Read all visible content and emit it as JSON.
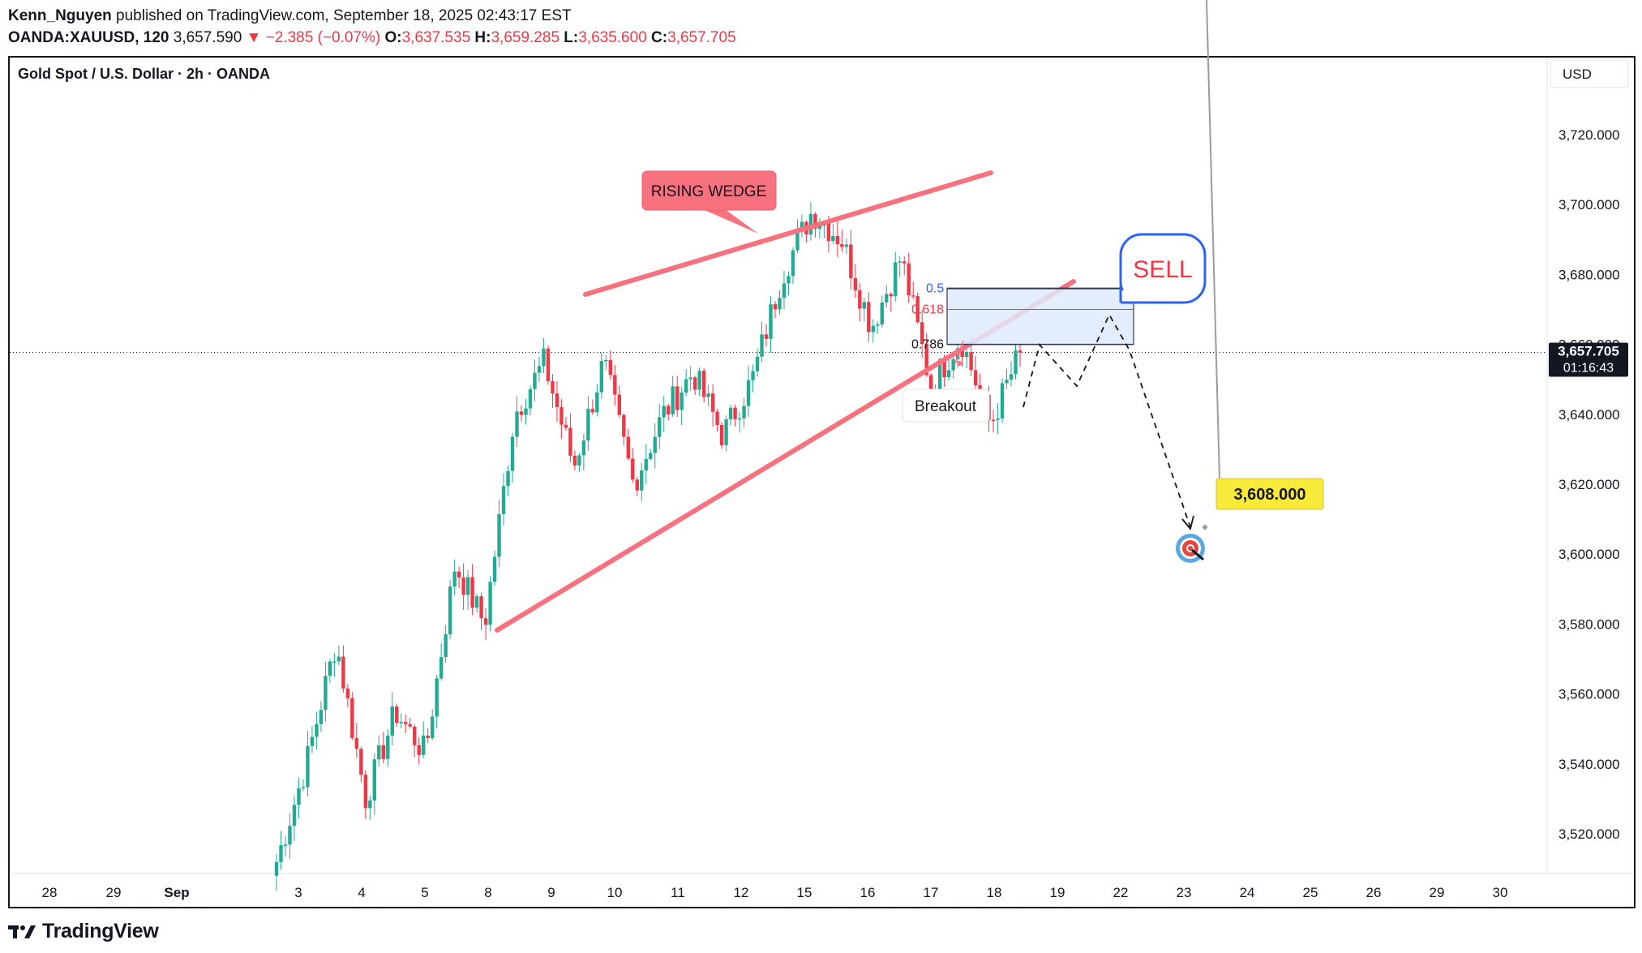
{
  "header": {
    "author": "Kenn_Nguyen",
    "published_text": "published on TradingView.com, September 18, 2025 02:43:17 EST",
    "symbol": "OANDA:XAUUSD, 120",
    "last": "3,657.590",
    "change": "▼ −2.385 (−0.07%)",
    "o_label": "O:",
    "o": "3,637.535",
    "h_label": "H:",
    "h": "3,659.285",
    "l_label": "L:",
    "l": "3,635.600",
    "c_label": "C:",
    "c": "3,657.705"
  },
  "chart_title": "Gold Spot / U.S. Dollar · 2h · OANDA",
  "currency": "USD",
  "footer": {
    "brand": "TradingView",
    "logo_icon": "tradingview-logo-icon"
  },
  "colors": {
    "up": "#22ab94",
    "down": "#f23645",
    "wedge": "#f7727e",
    "zone": "#e3eefc",
    "zone_border": "#2f3b52",
    "sell": "#2962ff",
    "target_bg": "#f9ea3a"
  },
  "annotations": {
    "wedge_label": "RISING WEDGE",
    "sell_label": "SELL",
    "breakout_label": "Breakout",
    "target_label": "3,608.000",
    "target_icon": "target-icon",
    "fib_levels": [
      "0.5",
      "0.618",
      "0.786"
    ]
  },
  "chart_data": {
    "type": "candlestick",
    "title": "Gold Spot / U.S. Dollar · 2h · OANDA",
    "ylabel": "USD",
    "ylim": [
      3505,
      3732
    ],
    "y_ticks": [
      3520,
      3540,
      3560,
      3580,
      3600,
      3620,
      3640,
      3660,
      3680,
      3700,
      3720
    ],
    "y_tick_labels": [
      "3,520.000",
      "3,540.000",
      "3,560.000",
      "3,580.000",
      "3,600.000",
      "3,620.000",
      "3,640.000",
      "3,660.000",
      "3,680.000",
      "3,700.000",
      "3,720.000"
    ],
    "x_ticks": [
      "28",
      "29",
      "Sep",
      "3",
      "4",
      "5",
      "8",
      "9",
      "10",
      "11",
      "12",
      "15",
      "16",
      "17",
      "18",
      "19",
      "22",
      "23",
      "24",
      "25",
      "26",
      "29",
      "30"
    ],
    "current_price": 3657.705,
    "current_price_label": "3,657.705",
    "countdown": "01:16:43",
    "ohlc_keypoints": [
      {
        "date": "2025-09-02",
        "price": 3512
      },
      {
        "date": "2025-09-03",
        "price": 3540
      },
      {
        "date": "2025-09-03",
        "price": 3575
      },
      {
        "date": "2025-09-04",
        "price": 3530
      },
      {
        "date": "2025-09-05",
        "price": 3555
      },
      {
        "date": "2025-09-05",
        "price": 3543
      },
      {
        "date": "2025-09-08",
        "price": 3597
      },
      {
        "date": "2025-09-08",
        "price": 3580
      },
      {
        "date": "2025-09-09",
        "price": 3640
      },
      {
        "date": "2025-09-09",
        "price": 3655
      },
      {
        "date": "2025-09-10",
        "price": 3625
      },
      {
        "date": "2025-09-10",
        "price": 3655
      },
      {
        "date": "2025-09-11",
        "price": 3620
      },
      {
        "date": "2025-09-12",
        "price": 3640
      },
      {
        "date": "2025-09-12",
        "price": 3652
      },
      {
        "date": "2025-09-15",
        "price": 3634
      },
      {
        "date": "2025-09-15",
        "price": 3650
      },
      {
        "date": "2025-09-16",
        "price": 3680
      },
      {
        "date": "2025-09-16",
        "price": 3698
      },
      {
        "date": "2025-09-17",
        "price": 3690
      },
      {
        "date": "2025-09-17",
        "price": 3665
      },
      {
        "date": "2025-09-17",
        "price": 3685
      },
      {
        "date": "2025-09-18",
        "price": 3648
      },
      {
        "date": "2025-09-18",
        "price": 3662
      },
      {
        "date": "2025-09-18",
        "price": 3637
      },
      {
        "date": "2025-09-18",
        "price": 3657.705
      }
    ],
    "fib_retracement": [
      {
        "level": "0.5",
        "price": 3676
      },
      {
        "level": "0.618",
        "price": 3670
      },
      {
        "level": "0.786",
        "price": 3660
      }
    ],
    "target_price": 3608
  }
}
